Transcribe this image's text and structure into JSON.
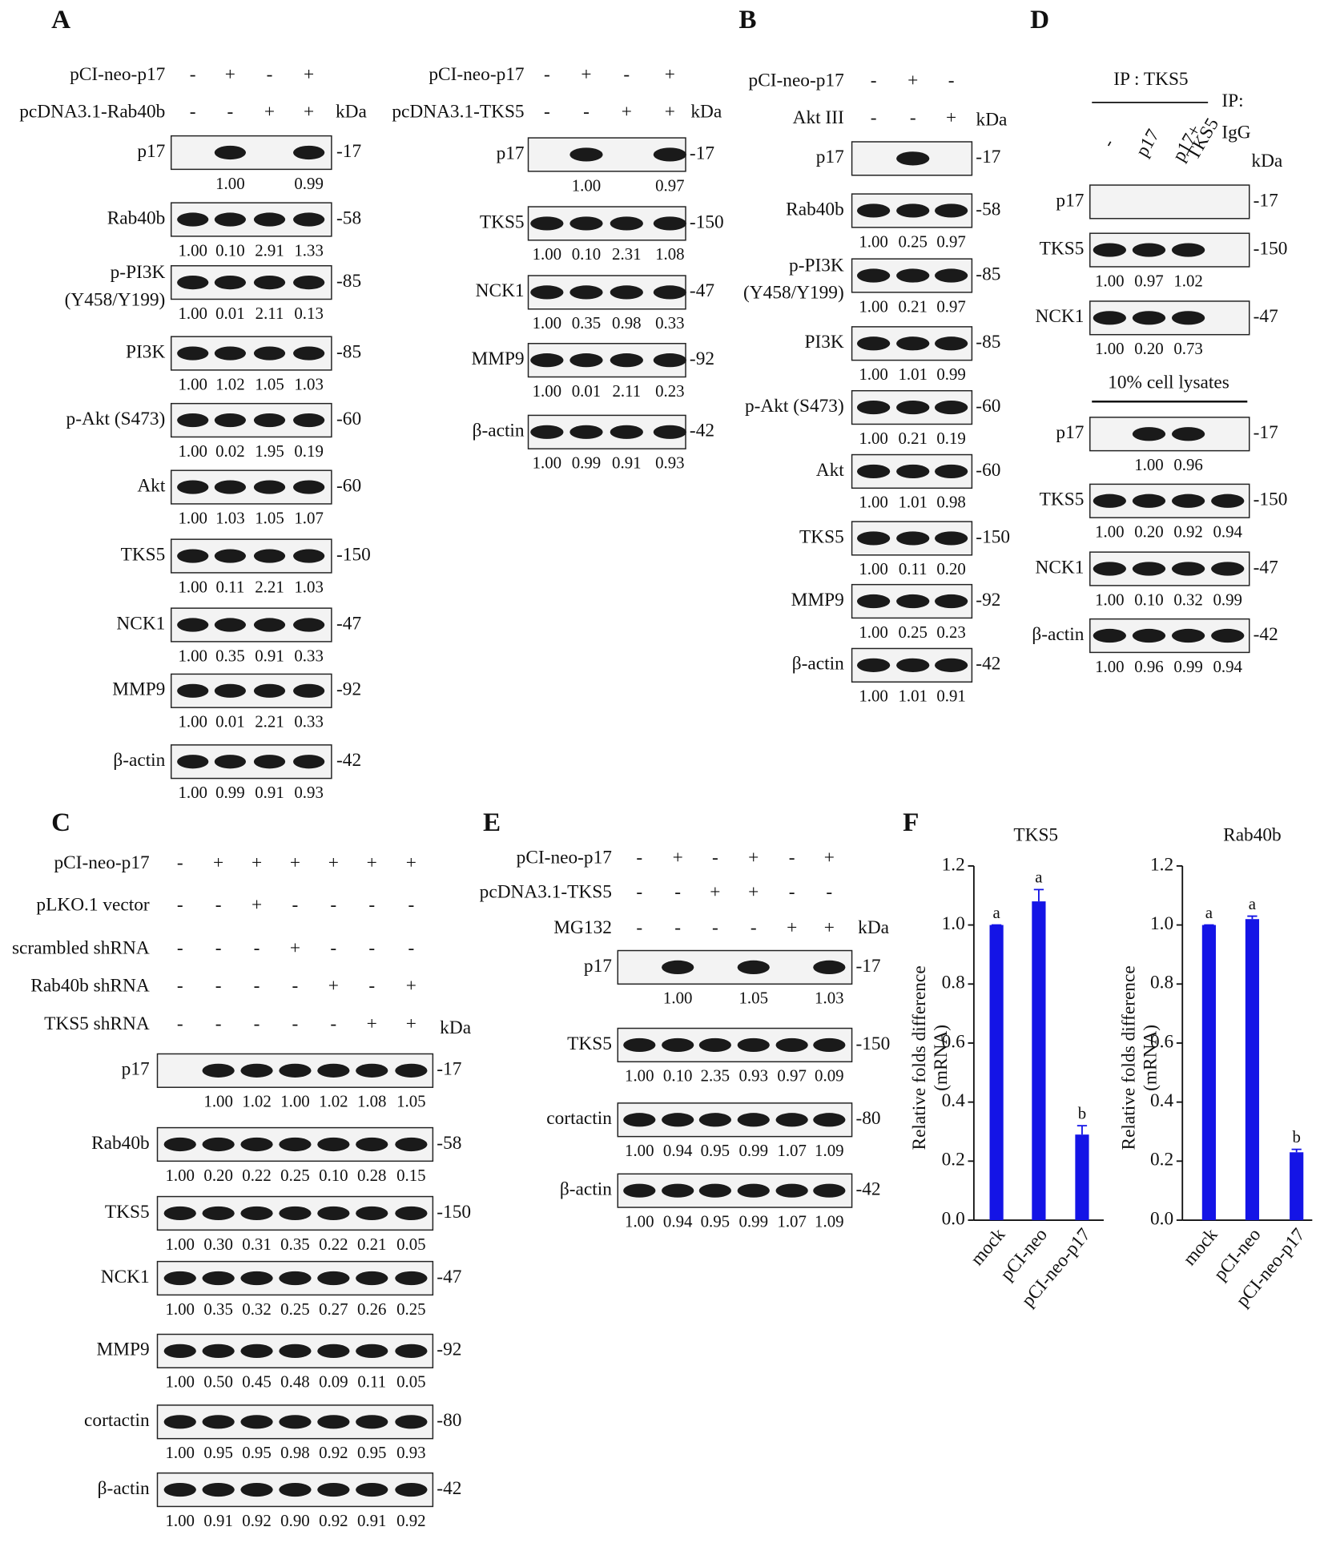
{
  "panels": [
    {
      "letter": "A",
      "kda": "kDa",
      "conditions": [
        {
          "label": "pCI-neo-p17",
          "signs": [
            "-",
            "+",
            "-",
            "+"
          ]
        },
        {
          "label": "pcDNA3.1-Rab40b",
          "signs": [
            "-",
            "-",
            "+",
            "+"
          ]
        }
      ],
      "blots": [
        {
          "name": "p17",
          "marker": "-17",
          "quant": [
            null,
            "1.00",
            null,
            "0.99"
          ]
        },
        {
          "name": "Rab40b",
          "marker": "-58",
          "quant": [
            "1.00",
            "0.10",
            "2.91",
            "1.33"
          ]
        },
        {
          "name": "p-PI3K",
          "subname": "(Y458/Y199)",
          "marker": "-85",
          "quant": [
            "1.00",
            "0.01",
            "2.11",
            "0.13"
          ]
        },
        {
          "name": "PI3K",
          "marker": "-85",
          "quant": [
            "1.00",
            "1.02",
            "1.05",
            "1.03"
          ]
        },
        {
          "name": "p-Akt (S473)",
          "marker": "-60",
          "quant": [
            "1.00",
            "0.02",
            "1.95",
            "0.19"
          ]
        },
        {
          "name": "Akt",
          "marker": "-60",
          "quant": [
            "1.00",
            "1.03",
            "1.05",
            "1.07"
          ]
        },
        {
          "name": "TKS5",
          "marker": "-150",
          "quant": [
            "1.00",
            "0.11",
            "2.21",
            "1.03"
          ]
        },
        {
          "name": "NCK1",
          "marker": "-47",
          "quant": [
            "1.00",
            "0.35",
            "0.91",
            "0.33"
          ]
        },
        {
          "name": "MMP9",
          "marker": "-92",
          "quant": [
            "1.00",
            "0.01",
            "2.21",
            "0.33"
          ]
        },
        {
          "name": "β-actin",
          "marker": "-42",
          "quant": [
            "1.00",
            "0.99",
            "0.91",
            "0.93"
          ]
        }
      ]
    },
    {
      "kda": "kDa",
      "conditions": [
        {
          "label": "pCI-neo-p17",
          "signs": [
            "-",
            "+",
            "-",
            "+"
          ]
        },
        {
          "label": "pcDNA3.1-TKS5",
          "signs": [
            "-",
            "-",
            "+",
            "+"
          ]
        }
      ],
      "blots": [
        {
          "name": "p17",
          "marker": "-17",
          "quant": [
            null,
            "1.00",
            null,
            "0.97"
          ]
        },
        {
          "name": "TKS5",
          "marker": "-150",
          "quant": [
            "1.00",
            "0.10",
            "2.31",
            "1.08"
          ]
        },
        {
          "name": "NCK1",
          "marker": "-47",
          "quant": [
            "1.00",
            "0.35",
            "0.98",
            "0.33"
          ]
        },
        {
          "name": "MMP9",
          "marker": "-92",
          "quant": [
            "1.00",
            "0.01",
            "2.11",
            "0.23"
          ]
        },
        {
          "name": "β-actin",
          "marker": "-42",
          "quant": [
            "1.00",
            "0.99",
            "0.91",
            "0.93"
          ]
        }
      ]
    },
    {
      "letter": "B",
      "kda": "kDa",
      "conditions": [
        {
          "label": "pCI-neo-p17",
          "signs": [
            "-",
            "+",
            "-"
          ]
        },
        {
          "label": "Akt III",
          "signs": [
            "-",
            "-",
            "+"
          ]
        }
      ],
      "blots": [
        {
          "name": "p17",
          "marker": "-17"
        },
        {
          "name": "Rab40b",
          "marker": "-58",
          "quant": [
            "1.00",
            "0.25",
            "0.97"
          ]
        },
        {
          "name": "p-PI3K",
          "subname": "(Y458/Y199)",
          "marker": "-85",
          "quant": [
            "1.00",
            "0.21",
            "0.97"
          ]
        },
        {
          "name": "PI3K",
          "marker": "-85",
          "quant": [
            "1.00",
            "1.01",
            "0.99"
          ]
        },
        {
          "name": "p-Akt (S473)",
          "marker": "-60",
          "quant": [
            "1.00",
            "0.21",
            "0.19"
          ]
        },
        {
          "name": "Akt",
          "marker": "-60",
          "quant": [
            "1.00",
            "1.01",
            "0.98"
          ]
        },
        {
          "name": "TKS5",
          "marker": "-150",
          "quant": [
            "1.00",
            "0.11",
            "0.20"
          ]
        },
        {
          "name": "MMP9",
          "marker": "-92",
          "quant": [
            "1.00",
            "0.25",
            "0.23"
          ]
        },
        {
          "name": "β-actin",
          "marker": "-42",
          "quant": [
            "1.00",
            "1.01",
            "0.91"
          ]
        }
      ]
    },
    {
      "letter": "D",
      "kda": "kDa",
      "ip_label": "IP : TKS5",
      "igg_label": [
        "IP:",
        "IgG"
      ],
      "lane_labels": [
        [
          "-"
        ],
        [
          "p17"
        ],
        [
          "p17+",
          "TKS5"
        ]
      ],
      "blots": [
        {
          "name": "p17",
          "marker": "-17"
        },
        {
          "name": "TKS5",
          "marker": "-150",
          "quant": [
            "1.00",
            "0.97",
            "1.02",
            null
          ]
        },
        {
          "name": "NCK1",
          "marker": "-47",
          "quant": [
            "1.00",
            "0.20",
            "0.73",
            null
          ]
        }
      ],
      "lysate_label": "10% cell lysates",
      "lysate_blots": [
        {
          "name": "p17",
          "marker": "-17",
          "quant": [
            null,
            "1.00",
            "0.96",
            null
          ]
        },
        {
          "name": "TKS5",
          "marker": "-150",
          "quant": [
            "1.00",
            "0.20",
            "0.92",
            "0.94"
          ]
        },
        {
          "name": "NCK1",
          "marker": "-47",
          "quant": [
            "1.00",
            "0.10",
            "0.32",
            "0.99"
          ]
        },
        {
          "name": "β-actin",
          "marker": "-42",
          "quant": [
            "1.00",
            "0.96",
            "0.99",
            "0.94"
          ]
        }
      ]
    },
    {
      "letter": "C",
      "kda": "kDa",
      "conditions": [
        {
          "label": "pCI-neo-p17",
          "signs": [
            "-",
            "+",
            "+",
            "+",
            "+",
            "+",
            "+"
          ]
        },
        {
          "label": "pLKO.1 vector",
          "signs": [
            "-",
            "-",
            "+",
            "-",
            "-",
            "-",
            "-"
          ]
        },
        {
          "label": "scrambled shRNA",
          "signs": [
            "-",
            "-",
            "-",
            "+",
            "-",
            "-",
            "-"
          ]
        },
        {
          "label": "Rab40b shRNA",
          "signs": [
            "-",
            "-",
            "-",
            "-",
            "+",
            "-",
            "+"
          ]
        },
        {
          "label": "TKS5 shRNA",
          "signs": [
            "-",
            "-",
            "-",
            "-",
            "-",
            "+",
            "+"
          ]
        }
      ],
      "blots": [
        {
          "name": "p17",
          "marker": "-17",
          "quant": [
            null,
            "1.00",
            "1.02",
            "1.00",
            "1.02",
            "1.08",
            "1.05"
          ]
        },
        {
          "name": "Rab40b",
          "marker": "-58",
          "quant": [
            "1.00",
            "0.20",
            "0.22",
            "0.25",
            "0.10",
            "0.28",
            "0.15"
          ]
        },
        {
          "name": "TKS5",
          "marker": "-150",
          "quant": [
            "1.00",
            "0.30",
            "0.31",
            "0.35",
            "0.22",
            "0.21",
            "0.05"
          ]
        },
        {
          "name": "NCK1",
          "marker": "-47",
          "quant": [
            "1.00",
            "0.35",
            "0.32",
            "0.25",
            "0.27",
            "0.26",
            "0.25"
          ]
        },
        {
          "name": "MMP9",
          "marker": "-92",
          "quant": [
            "1.00",
            "0.50",
            "0.45",
            "0.48",
            "0.09",
            "0.11",
            "0.05"
          ]
        },
        {
          "name": "cortactin",
          "marker": "-80",
          "quant": [
            "1.00",
            "0.95",
            "0.95",
            "0.98",
            "0.92",
            "0.95",
            "0.93"
          ]
        },
        {
          "name": "β-actin",
          "marker": "-42",
          "quant": [
            "1.00",
            "0.91",
            "0.92",
            "0.90",
            "0.92",
            "0.91",
            "0.92"
          ]
        }
      ]
    },
    {
      "letter": "E",
      "kda": "kDa",
      "conditions": [
        {
          "label": "pCI-neo-p17",
          "signs": [
            "-",
            "+",
            "-",
            "+",
            "-",
            "+"
          ]
        },
        {
          "label": "pcDNA3.1-TKS5",
          "signs": [
            "-",
            "-",
            "+",
            "+",
            "-",
            "-"
          ]
        },
        {
          "label": "MG132",
          "signs": [
            "-",
            "-",
            "-",
            "-",
            "+",
            "+"
          ]
        }
      ],
      "blots": [
        {
          "name": "p17",
          "marker": "-17",
          "quant": [
            null,
            "1.00",
            null,
            "1.05",
            null,
            "1.03"
          ]
        },
        {
          "name": "TKS5",
          "marker": "-150",
          "quant": [
            "1.00",
            "0.10",
            "2.35",
            "0.93",
            "0.97",
            "0.09"
          ]
        },
        {
          "name": "cortactin",
          "marker": "-80",
          "quant": [
            "1.00",
            "0.94",
            "0.95",
            "0.99",
            "1.07",
            "1.09"
          ]
        },
        {
          "name": "β-actin",
          "marker": "-42",
          "quant": [
            "1.00",
            "0.94",
            "0.95",
            "0.99",
            "1.07",
            "1.09"
          ]
        }
      ]
    }
  ],
  "chart_letter": "F",
  "chart_data": [
    {
      "type": "bar",
      "title": "TKS5",
      "ylabel": [
        "Relative folds difference",
        "(mRNA)"
      ],
      "categories": [
        "mock",
        "pCI-neo",
        "pCI-neo-p17"
      ],
      "values": [
        1.0,
        1.08,
        0.29
      ],
      "errors": [
        0.0,
        0.04,
        0.03
      ],
      "bar_labels": [
        "a",
        "a",
        "b"
      ],
      "color": "#1414e6",
      "ylim": [
        0,
        1.2
      ],
      "yticks": [
        {
          "value": 0,
          "label": "0.0"
        },
        0.2,
        0.4,
        0.6,
        0.8,
        {
          "value": 1,
          "label": "1.0"
        },
        1.2
      ]
    },
    {
      "type": "bar",
      "title": "Rab40b",
      "ylabel": [
        "Relative folds difference",
        "(mRNA)"
      ],
      "categories": [
        "mock",
        "pCI-neo",
        "pCI-neo-p17"
      ],
      "values": [
        1.0,
        1.02,
        0.23
      ],
      "errors": [
        0.0,
        0.01,
        0.01
      ],
      "bar_labels": [
        "a",
        "a",
        "b"
      ],
      "color": "#1414e6",
      "ylim": [
        0,
        1.2
      ],
      "yticks": [
        {
          "value": 0,
          "label": "0.0"
        },
        0.2,
        0.4,
        0.6,
        0.8,
        {
          "value": 1,
          "label": "1.0"
        },
        1.2
      ]
    }
  ]
}
